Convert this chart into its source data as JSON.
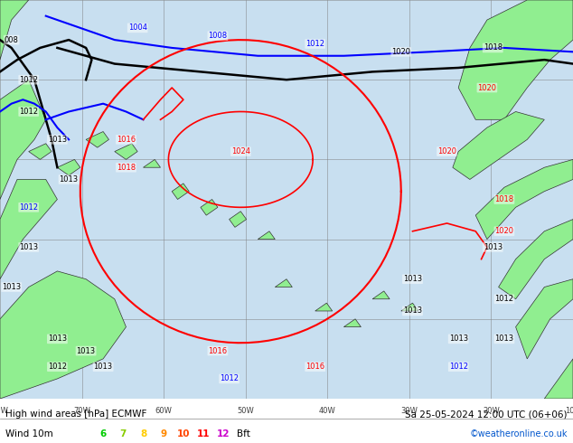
{
  "title_left": "High wind areas [hPa] ECMWF",
  "title_right": "Sa 25-05-2024 12:00 UTC (06+06)",
  "legend_label": "Wind 10m",
  "bft_numbers": [
    "6",
    "7",
    "8",
    "9",
    "10",
    "11",
    "12"
  ],
  "bft_colors": [
    "#00cc00",
    "#88cc00",
    "#ffcc00",
    "#ff8800",
    "#ff4400",
    "#ff0000",
    "#cc00cc"
  ],
  "copyright": "©weatheronline.co.uk",
  "land_color": "#90ee90",
  "map_bg": "#c8dff0",
  "bottom_bar_color": "#ffffff",
  "grid_color": "#808080",
  "figsize": [
    6.34,
    4.9
  ],
  "dpi": 100
}
